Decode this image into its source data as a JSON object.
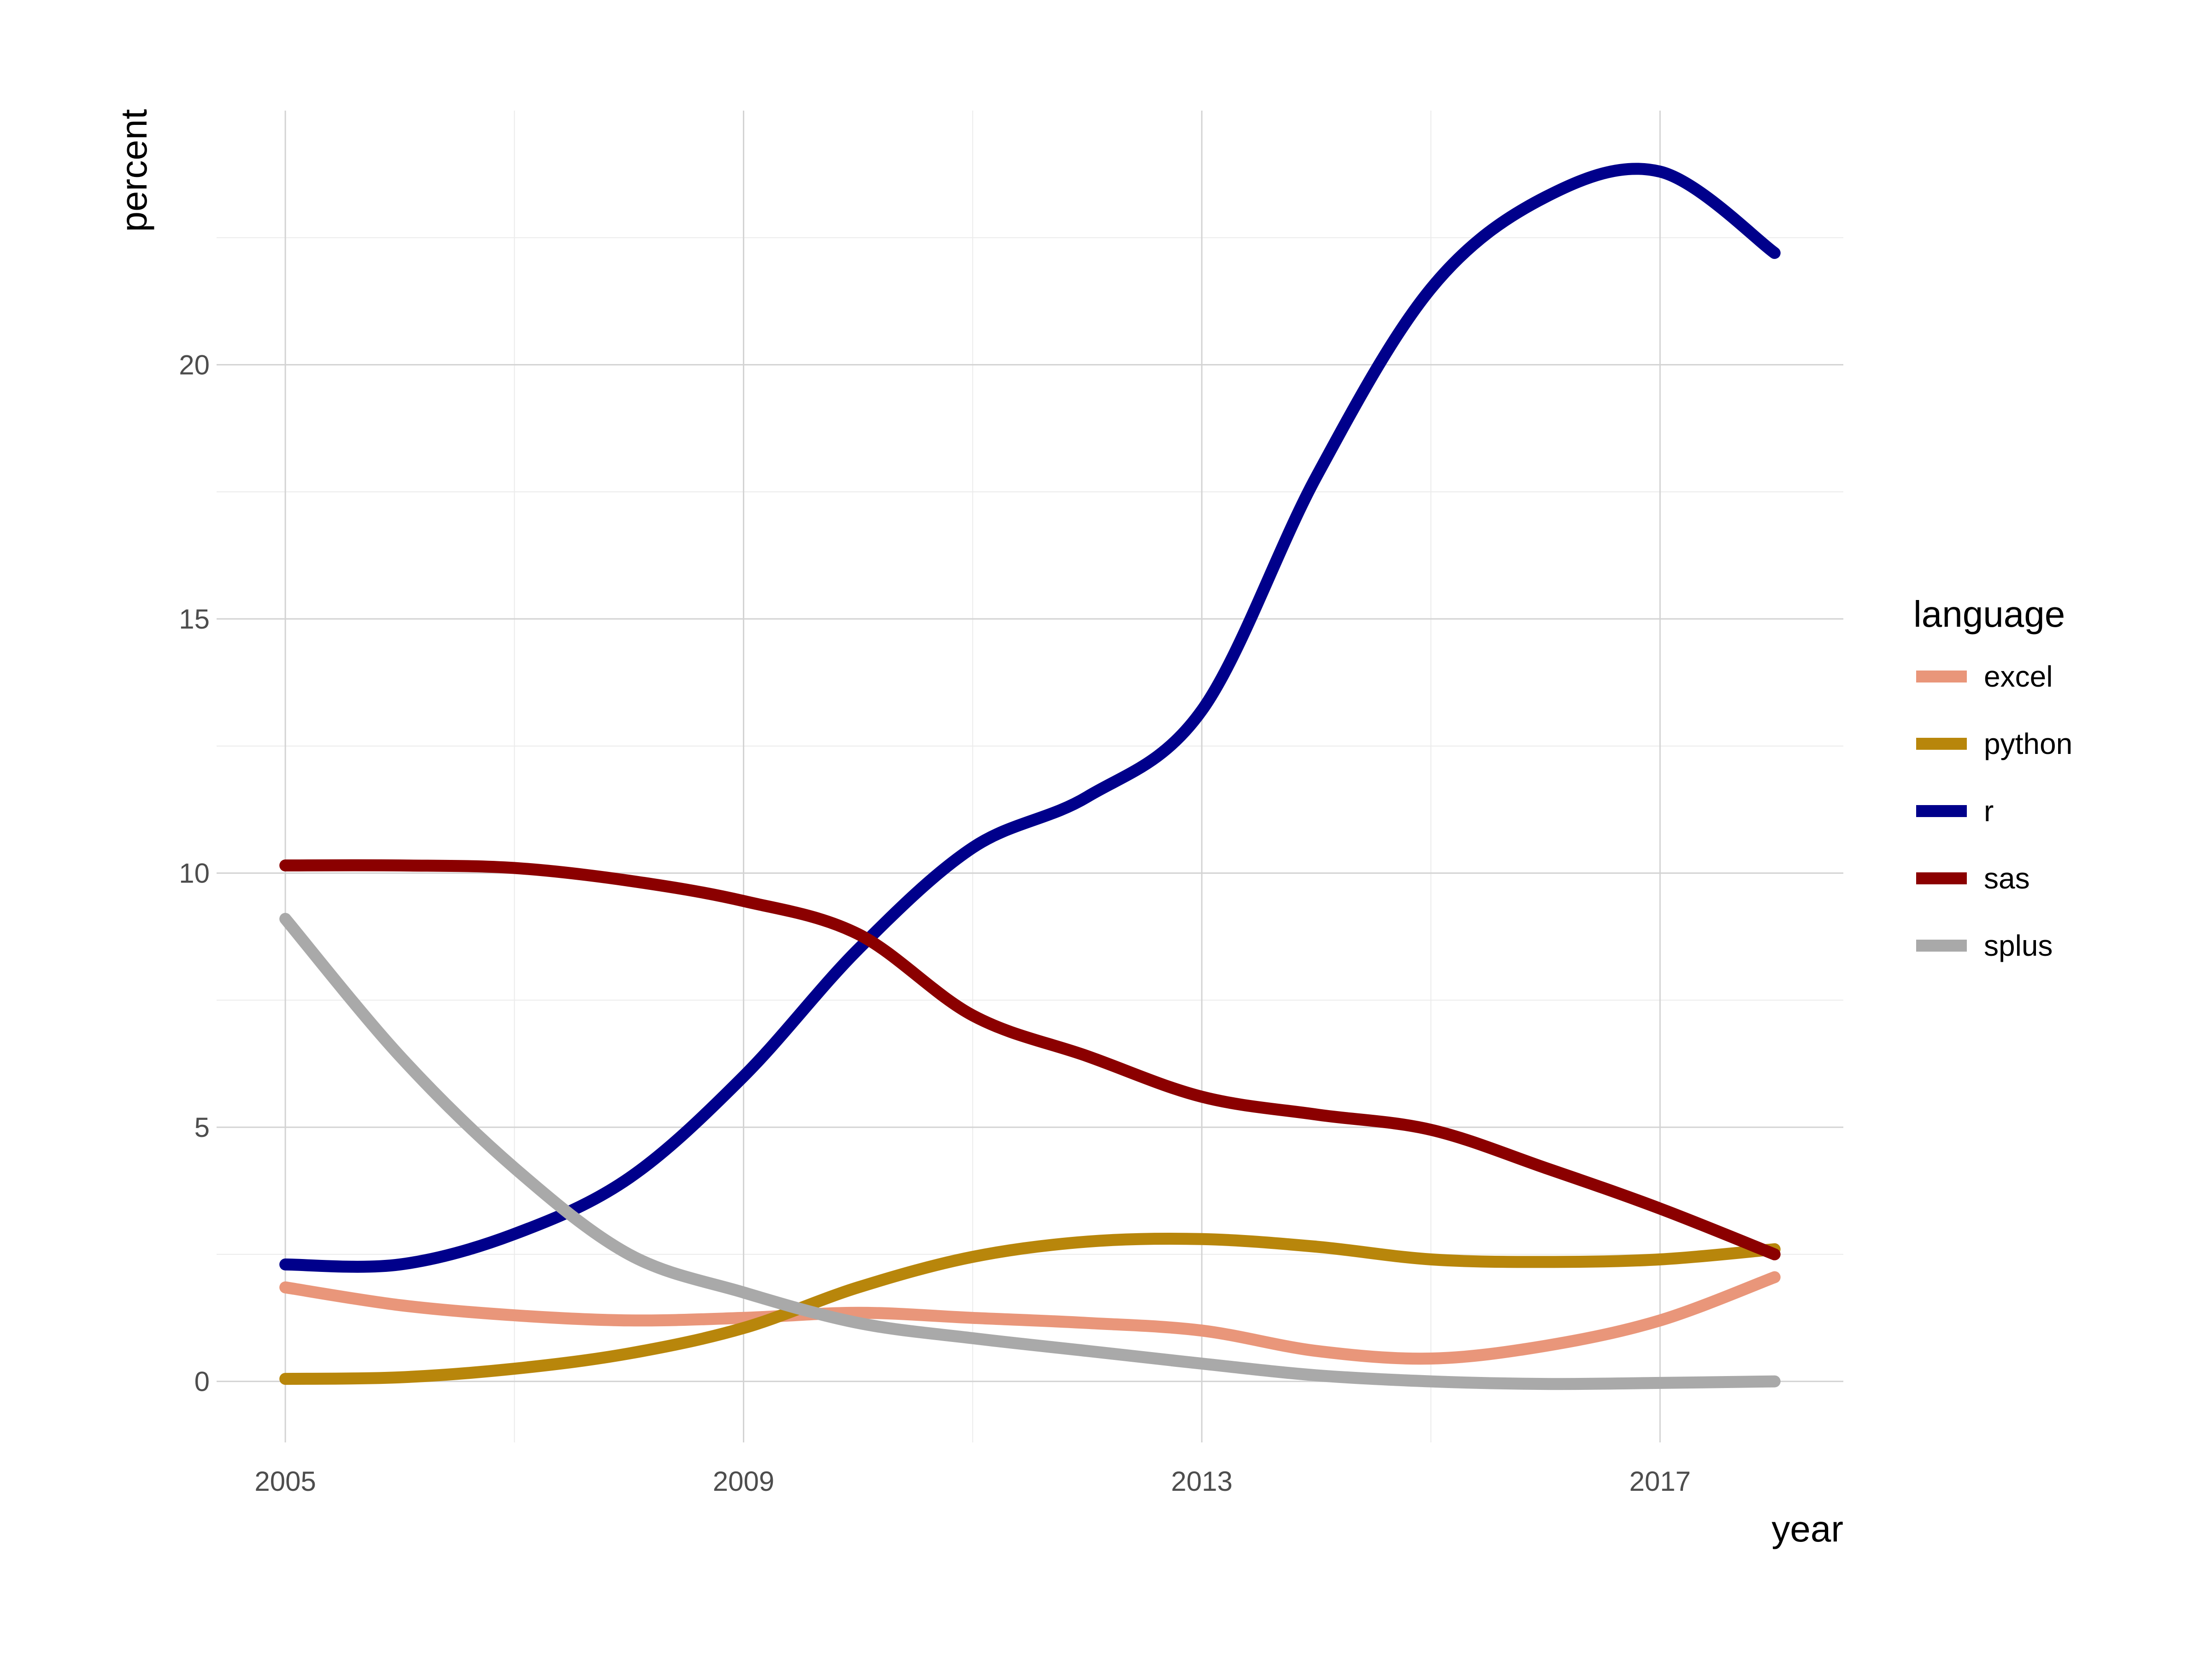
{
  "chart_data": {
    "type": "line",
    "xlabel": "year",
    "ylabel": "percent",
    "xlim": [
      2004.4,
      2018.6
    ],
    "ylim": [
      -1.2,
      25
    ],
    "x_ticks": [
      2005,
      2009,
      2013,
      2017
    ],
    "y_ticks": [
      0,
      5,
      10,
      15,
      20
    ],
    "grid": true,
    "legend": {
      "title": "language",
      "placement": "right"
    },
    "series": [
      {
        "name": "excel",
        "color": "#e9967a",
        "x": [
          2005,
          2006,
          2007,
          2008,
          2009,
          2010,
          2011,
          2012,
          2013,
          2014,
          2015,
          2016,
          2017,
          2018
        ],
        "y": [
          1.85,
          1.5,
          1.3,
          1.2,
          1.25,
          1.35,
          1.25,
          1.15,
          1.0,
          0.6,
          0.45,
          0.7,
          1.2,
          2.05
        ]
      },
      {
        "name": "python",
        "color": "#b8860b",
        "x": [
          2005,
          2006,
          2007,
          2008,
          2009,
          2010,
          2011,
          2012,
          2013,
          2014,
          2015,
          2016,
          2017,
          2018
        ],
        "y": [
          0.05,
          0.08,
          0.25,
          0.55,
          1.05,
          1.85,
          2.45,
          2.75,
          2.8,
          2.65,
          2.4,
          2.35,
          2.4,
          2.6
        ]
      },
      {
        "name": "r",
        "color": "#00008b",
        "x": [
          2005,
          2006,
          2007,
          2008,
          2009,
          2010,
          2011,
          2012,
          2013,
          2014,
          2015,
          2016,
          2017,
          2018
        ],
        "y": [
          2.3,
          2.3,
          2.9,
          4.0,
          6.0,
          8.5,
          10.5,
          11.5,
          13.2,
          17.8,
          21.5,
          23.3,
          23.8,
          22.2
        ]
      },
      {
        "name": "sas",
        "color": "#8b0000",
        "x": [
          2005,
          2006,
          2007,
          2008,
          2009,
          2010,
          2011,
          2012,
          2013,
          2014,
          2015,
          2016,
          2017,
          2018
        ],
        "y": [
          10.15,
          10.15,
          10.1,
          9.85,
          9.45,
          8.8,
          7.2,
          6.4,
          5.6,
          5.25,
          4.95,
          4.2,
          3.4,
          2.5
        ]
      },
      {
        "name": "splus",
        "color": "#a9a9a9",
        "x": [
          2005,
          2006,
          2007,
          2008,
          2009,
          2010,
          2011,
          2012,
          2013,
          2014,
          2015,
          2016,
          2017,
          2018
        ],
        "y": [
          9.1,
          6.4,
          4.2,
          2.5,
          1.75,
          1.15,
          0.85,
          0.6,
          0.35,
          0.12,
          0.0,
          -0.05,
          -0.03,
          0.0
        ]
      }
    ]
  }
}
